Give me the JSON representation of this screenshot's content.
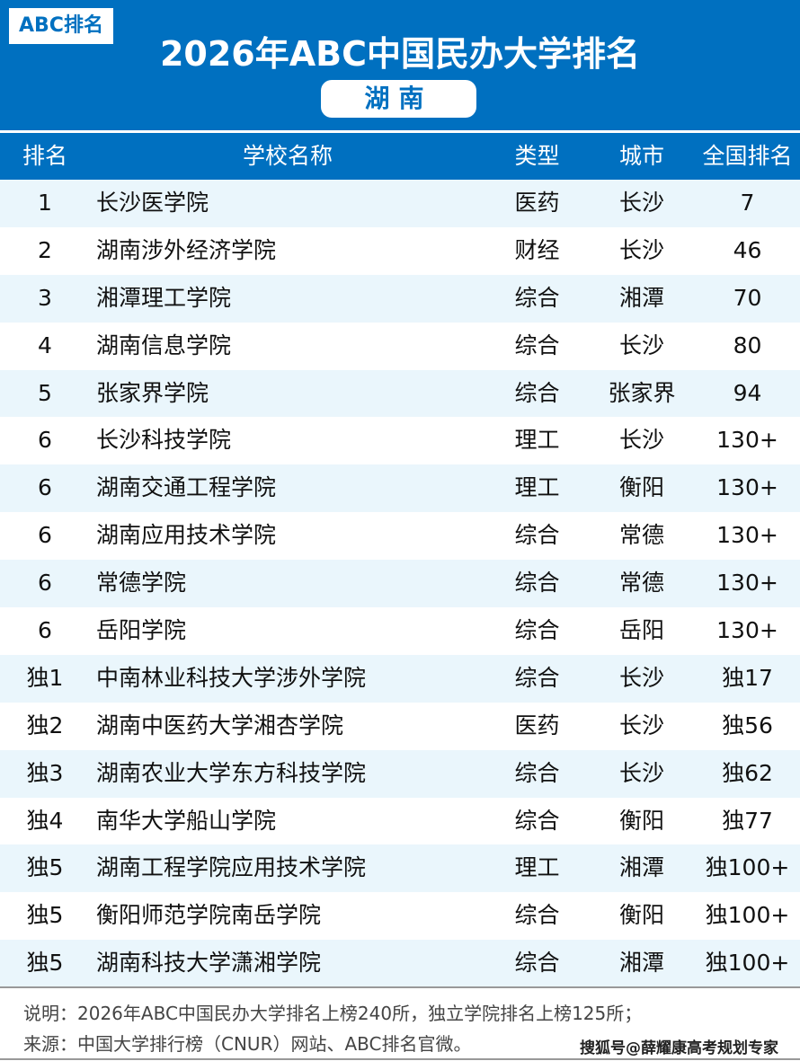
{
  "header": {
    "logo": "ABC排名",
    "title": "2026年ABC中国民办大学排名",
    "province": "湖南",
    "brand_color": "#0070c0"
  },
  "columns": [
    "排名",
    "学校名称",
    "类型",
    "城市",
    "全国排名"
  ],
  "rows": [
    [
      "1",
      "长沙医学院",
      "医药",
      "长沙",
      "7"
    ],
    [
      "2",
      "湖南涉外经济学院",
      "财经",
      "长沙",
      "46"
    ],
    [
      "3",
      "湘潭理工学院",
      "综合",
      "湘潭",
      "70"
    ],
    [
      "4",
      "湖南信息学院",
      "综合",
      "长沙",
      "80"
    ],
    [
      "5",
      "张家界学院",
      "综合",
      "张家界",
      "94"
    ],
    [
      "6",
      "长沙科技学院",
      "理工",
      "长沙",
      "130+"
    ],
    [
      "6",
      "湖南交通工程学院",
      "理工",
      "衡阳",
      "130+"
    ],
    [
      "6",
      "湖南应用技术学院",
      "综合",
      "常德",
      "130+"
    ],
    [
      "6",
      "常德学院",
      "综合",
      "常德",
      "130+"
    ],
    [
      "6",
      "岳阳学院",
      "综合",
      "岳阳",
      "130+"
    ],
    [
      "独1",
      "中南林业科技大学涉外学院",
      "综合",
      "长沙",
      "独17"
    ],
    [
      "独2",
      "湖南中医药大学湘杏学院",
      "医药",
      "长沙",
      "独56"
    ],
    [
      "独3",
      "湖南农业大学东方科技学院",
      "综合",
      "长沙",
      "独62"
    ],
    [
      "独4",
      "南华大学船山学院",
      "综合",
      "衡阳",
      "独77"
    ],
    [
      "独5",
      "湖南工程学院应用技术学院",
      "理工",
      "湘潭",
      "独100+"
    ],
    [
      "独5",
      "衡阳师范学院南岳学院",
      "综合",
      "衡阳",
      "独100+"
    ],
    [
      "独5",
      "湖南科技大学潇湘学院",
      "综合",
      "湘潭",
      "独100+"
    ]
  ],
  "footer": {
    "note": "说明：2026年ABC中国民办大学排名上榜240所，独立学院排名上榜125所；",
    "source": "来源：中国大学排行榜（CNUR）网站、ABC排名官微。",
    "watermark": "搜狐号@薛耀康高考规划专家"
  }
}
